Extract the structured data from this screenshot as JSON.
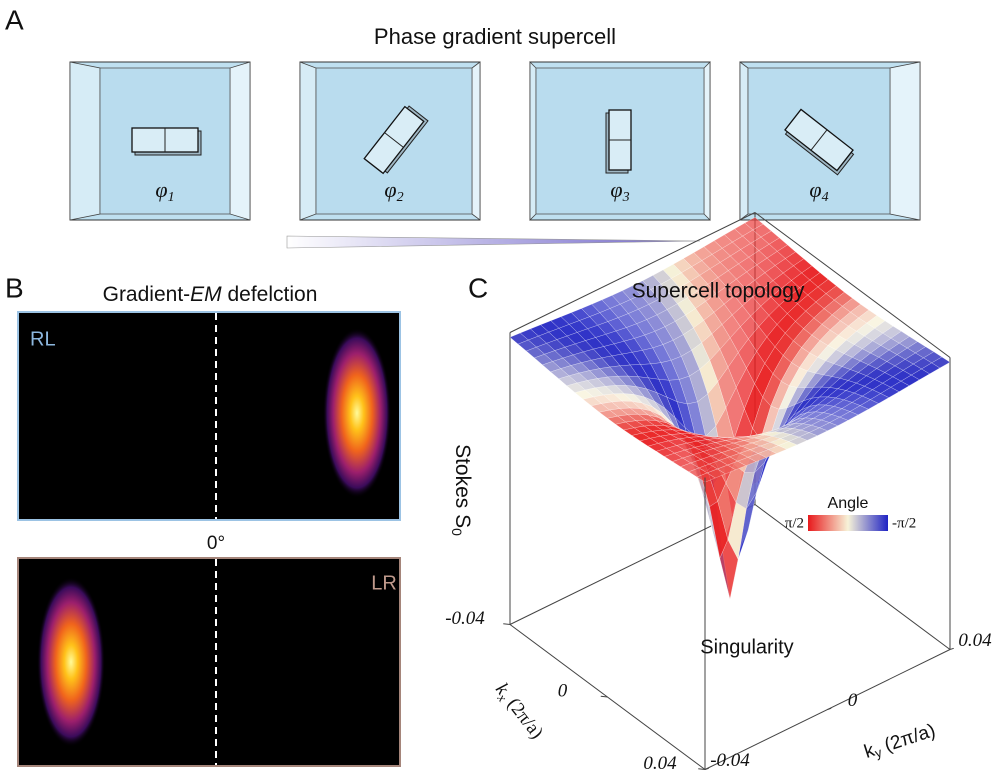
{
  "panels": {
    "A": {
      "label": "A",
      "title": "Phase gradient supercell",
      "cells": [
        {
          "symbol": "φ",
          "subscript": "1"
        },
        {
          "symbol": "φ",
          "subscript": "2"
        },
        {
          "symbol": "φ",
          "subscript": "3"
        },
        {
          "symbol": "φ",
          "subscript": "4"
        }
      ]
    },
    "B": {
      "label": "B",
      "title": [
        "Gradient-",
        "EM",
        " defelction"
      ],
      "top_label": "RL",
      "center_label": "0°",
      "bottom_label": "LR"
    },
    "C": {
      "label": "C",
      "title": "Supercell topology",
      "z_axis": {
        "label": "Stokes S",
        "subscript": "0"
      },
      "kx_axis": {
        "symbol": "k",
        "subscript": "x",
        "unit": " (2π/a)",
        "ticks": [
          -0.04,
          0,
          0.04
        ]
      },
      "ky_axis": {
        "symbol": "k",
        "subscript": "y",
        "unit": " (2π/a)",
        "ticks": [
          -0.04,
          0,
          0.04
        ]
      },
      "colorbar": {
        "title": "Angle",
        "left_label": "π/2",
        "right_label": "-π/2"
      },
      "annotation": "Singularity"
    }
  }
}
